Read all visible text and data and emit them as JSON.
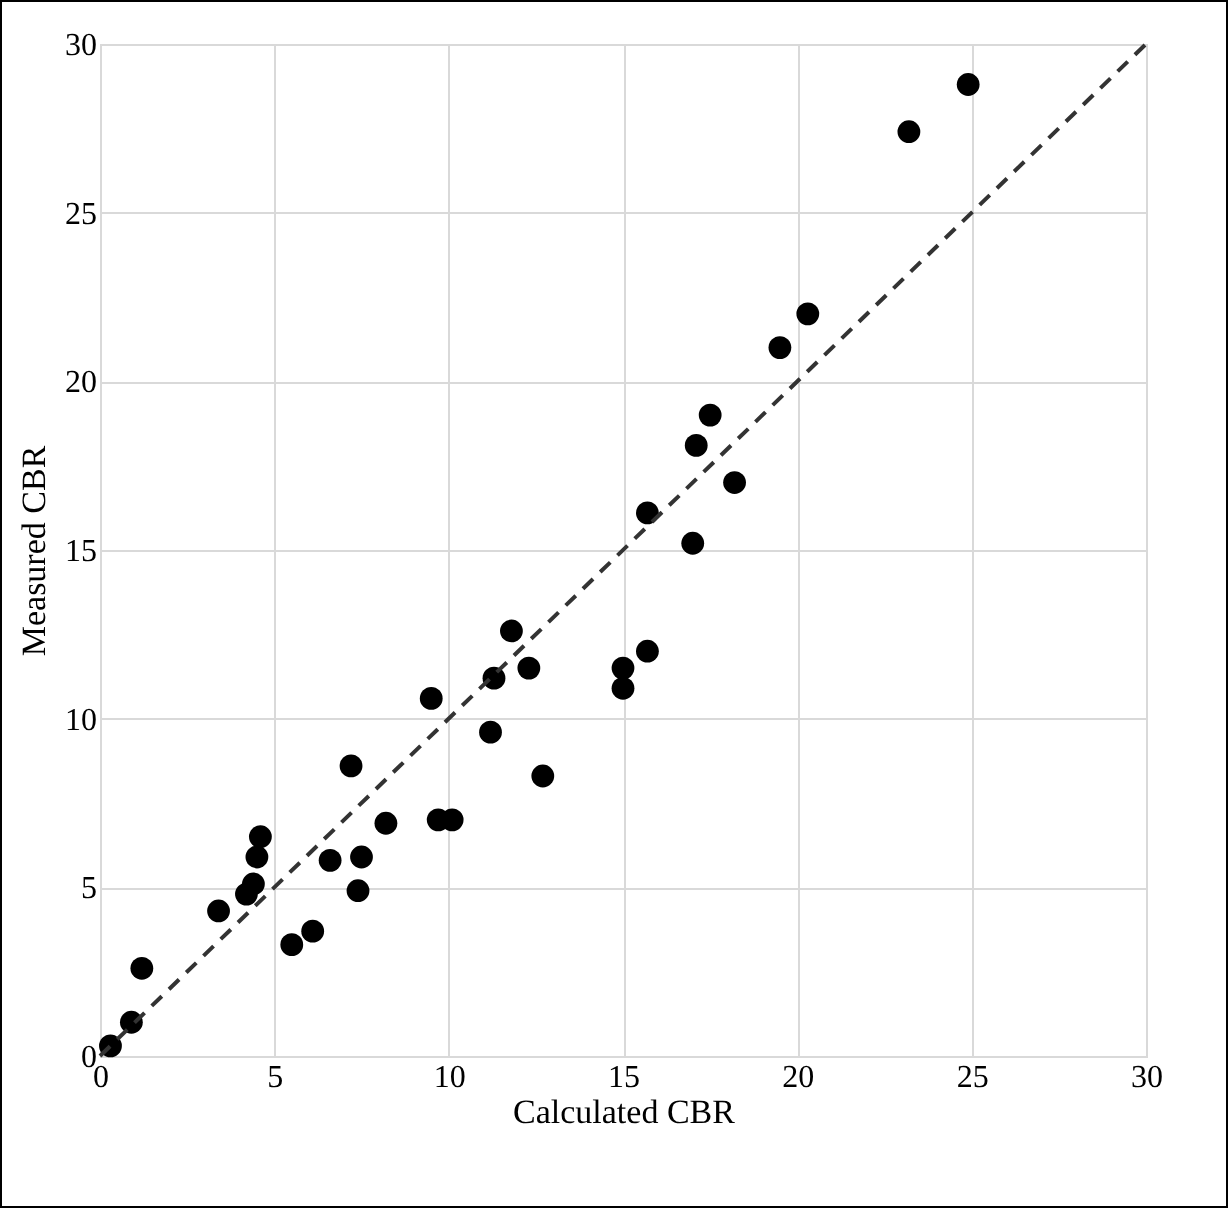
{
  "chart_data": {
    "type": "scatter",
    "xlabel": "Calculated CBR",
    "ylabel": "Measured CBR",
    "xlim": [
      0,
      30
    ],
    "xticks": [
      0,
      5,
      10,
      15,
      20,
      25,
      30
    ],
    "ylim": [
      0,
      30
    ],
    "yticks": [
      0,
      5,
      10,
      15,
      20,
      25,
      30
    ],
    "grid": true,
    "series": [
      {
        "marker": "circle",
        "color": "#000000",
        "x": [
          0.3,
          0.9,
          1.2,
          3.4,
          4.2,
          4.4,
          4.5,
          4.6,
          5.5,
          6.1,
          6.6,
          7.2,
          7.5,
          7.4,
          8.2,
          9.5,
          9.7,
          10.1,
          11.2,
          11.3,
          11.8,
          12.3,
          12.7,
          15.0,
          15.0,
          15.7,
          15.7,
          17.0,
          17.1,
          17.5,
          18.2,
          19.5,
          20.3,
          23.2,
          24.9
        ],
        "values": [
          0.3,
          1.0,
          2.6,
          4.3,
          4.8,
          5.1,
          5.9,
          6.5,
          3.3,
          3.7,
          5.8,
          8.6,
          5.9,
          4.9,
          6.9,
          10.6,
          7.0,
          7.0,
          9.6,
          11.2,
          12.6,
          11.5,
          8.3,
          10.9,
          11.5,
          12.0,
          16.1,
          15.2,
          18.1,
          19.0,
          17.0,
          21.0,
          22.0,
          27.4,
          28.8
        ]
      },
      {
        "type": "line",
        "color": "#333333",
        "line_style": "dashed",
        "marker": "none",
        "x": [
          0,
          30
        ],
        "values": [
          0,
          30
        ]
      }
    ]
  }
}
